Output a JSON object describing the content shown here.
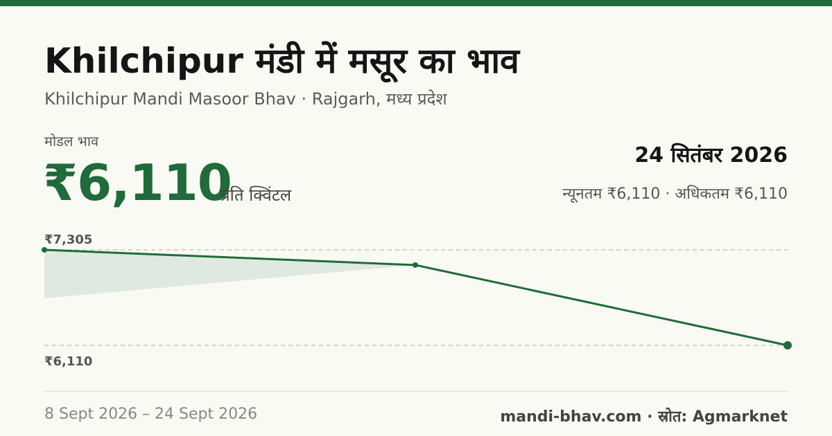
{
  "header": {
    "title": "Khilchipur मंडी में मसूर का भाव",
    "subtitle": "Khilchipur Mandi Masoor Bhav · Rajgarh, मध्य प्रदेश"
  },
  "price": {
    "label": "मोडल भाव",
    "value": "₹6,110",
    "unit": "प्रति क्विंटल"
  },
  "summary": {
    "date": "24 सितंबर 2026",
    "range": "न्यूनतम ₹6,110 · अधिकतम ₹6,110"
  },
  "footer": {
    "date_range": "8 Sept 2026 – 24 Sept 2026",
    "source": "mandi-bhav.com · स्रोत: Agmarknet"
  },
  "colors": {
    "accent": "#1f6b3a",
    "area": "#dfe9e1",
    "grid": "#c8c8c0"
  },
  "chart_data": {
    "type": "line",
    "x": [
      "8 Sept 2026",
      "",
      "24 Sept 2026"
    ],
    "values": [
      7305,
      7115,
      6110
    ],
    "ylim": [
      6110,
      7305
    ],
    "y_labels": {
      "max": "₹7,305",
      "min": "₹6,110"
    },
    "grid": true
  }
}
